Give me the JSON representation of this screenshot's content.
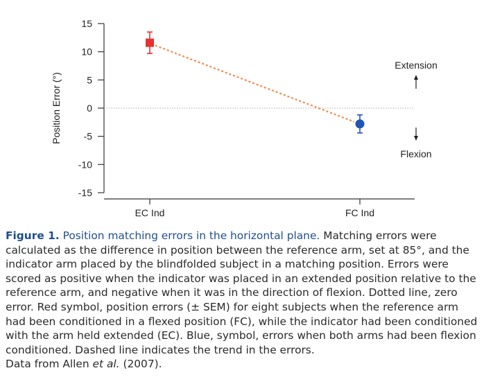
{
  "chart_data": {
    "type": "scatter",
    "categories": [
      "EC Ind",
      "FC Ind"
    ],
    "ylabel": "Position Error (°)",
    "ylim": [
      -15,
      15
    ],
    "yticks": [
      "15",
      "10",
      "5",
      "0",
      "-5",
      "-10",
      "-15"
    ],
    "series": [
      {
        "category": "EC Ind",
        "value": 11.6,
        "sem": 1.9,
        "color": "#e8312f"
      },
      {
        "category": "FC Ind",
        "value": -2.8,
        "sem": 1.6,
        "color": "#1f55b5"
      }
    ],
    "zero_line": "dotted",
    "trend_line": {
      "style": "dashed",
      "color": "#f08a4b"
    },
    "annotations": {
      "extension": "Extension",
      "flexion": "Flexion"
    }
  },
  "caption": {
    "label": "Figure 1.",
    "title": "Position matching errors in the horizontal plane.",
    "body": "Matching errors were calculated as the difference in position between the reference arm, set at 85°, and the indicator arm placed by the blindfolded subject in a matching position. Errors were scored as positive when the indicator was placed in an extended position relative to the reference arm, and negative when it was in the direction of flexion. Dotted line, zero error. Red symbol, position errors (± SEM) for eight subjects when the reference arm had been conditioned in a flexed position (FC), while the indicator had been conditioned with the arm held extended (EC). Blue, symbol, errors when both arms had been flexion conditioned. Dashed line indicates the trend in the errors.",
    "source_prefix": "Data from Allen ",
    "source_etal": "et al.",
    "source_suffix": " (2007)."
  }
}
